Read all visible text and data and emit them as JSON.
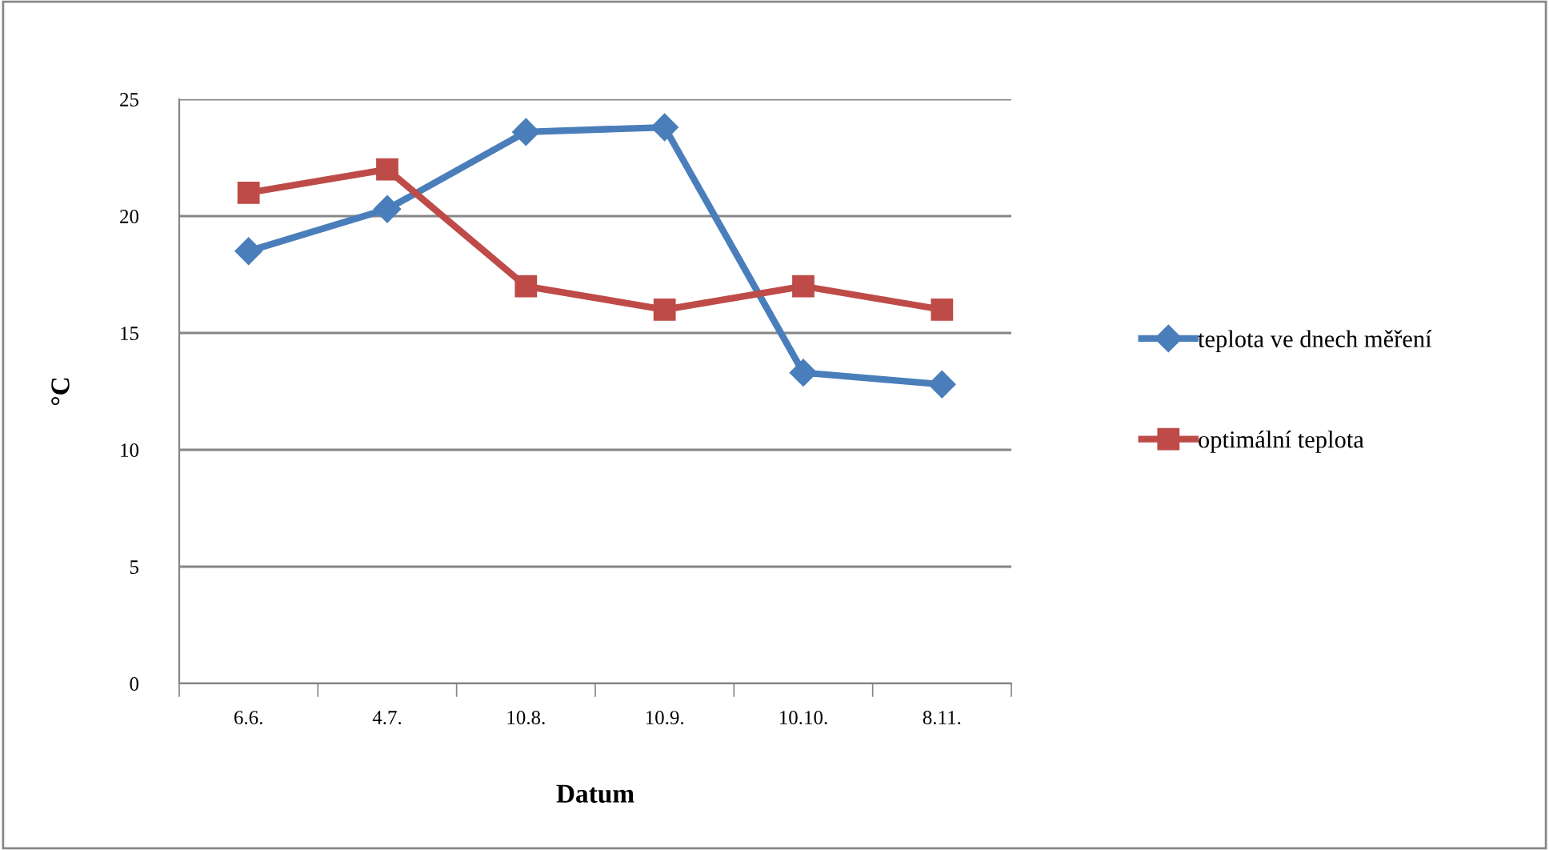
{
  "chart_data": {
    "type": "line",
    "xlabel": "Datum",
    "ylabel": "°C",
    "categories": [
      "6.6.",
      "4.7.",
      "10.8.",
      "10.9.",
      "10.10.",
      "8.11."
    ],
    "series": [
      {
        "name": "teplota ve dnech měření",
        "color": "#4a7ebb",
        "marker": "diamond",
        "values": [
          18.5,
          20.3,
          23.6,
          23.8,
          13.3,
          12.8
        ]
      },
      {
        "name": "optimální teplota",
        "color": "#be4b48",
        "marker": "square",
        "values": [
          21,
          22,
          17,
          16,
          17,
          16
        ]
      }
    ],
    "ylim": [
      0,
      25
    ],
    "yticks": [
      0,
      5,
      10,
      15,
      20,
      25
    ],
    "grid": "y",
    "legend": "right",
    "line_style": "solid"
  }
}
